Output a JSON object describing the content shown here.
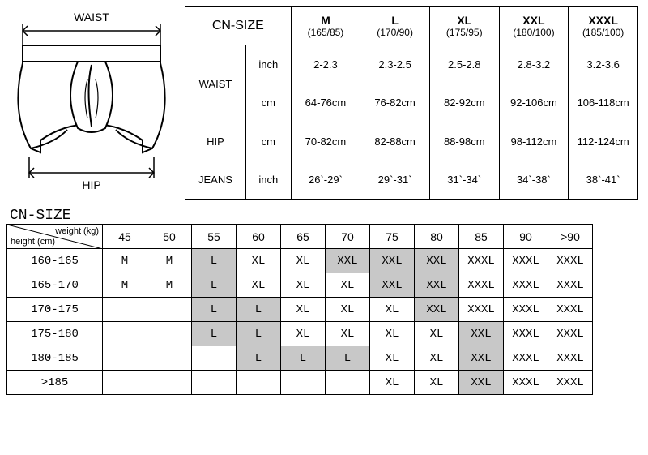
{
  "diagram": {
    "waist_label": "WAIST",
    "hip_label": "HIP",
    "colors": {
      "stroke": "#000000",
      "fill_light": "#ffffff",
      "fill_shadow": "#eeeeee"
    }
  },
  "size_table": {
    "title": "CN-SIZE",
    "columns": [
      {
        "label": "M",
        "sub": "(165/85)"
      },
      {
        "label": "L",
        "sub": "(170/90)"
      },
      {
        "label": "XL",
        "sub": "(175/95)"
      },
      {
        "label": "XXL",
        "sub": "(180/100)"
      },
      {
        "label": "XXXL",
        "sub": "(185/100)"
      }
    ],
    "rows": [
      {
        "group": "WAIST",
        "unit": "inch",
        "values": [
          "2-2.3",
          "2.3-2.5",
          "2.5-2.8",
          "2.8-3.2",
          "3.2-3.6"
        ]
      },
      {
        "group": "",
        "unit": "cm",
        "values": [
          "64-76cm",
          "76-82cm",
          "82-92cm",
          "92-106cm",
          "106-118cm"
        ]
      },
      {
        "group": "HIP",
        "unit": "cm",
        "values": [
          "70-82cm",
          "82-88cm",
          "88-98cm",
          "98-112cm",
          "112-124cm"
        ]
      },
      {
        "group": "JEANS",
        "unit": "inch",
        "values": [
          "26`-29`",
          "29`-31`",
          "31`-34`",
          "34`-38`",
          "38`-41`"
        ]
      }
    ],
    "row_groups": [
      {
        "label": "WAIST",
        "span": 2
      },
      {
        "label": "HIP",
        "span": 1
      },
      {
        "label": "JEANS",
        "span": 1
      }
    ]
  },
  "wh_table": {
    "title": "CN-SIZE",
    "axis": {
      "weight": "weight (kg)",
      "height": "height (cm)"
    },
    "weight_cols": [
      "45",
      "50",
      "55",
      "60",
      "65",
      "70",
      "75",
      "80",
      "85",
      "90",
      ">90"
    ],
    "height_rows": [
      "160-165",
      "165-170",
      "170-175",
      "175-180",
      "180-185",
      ">185"
    ],
    "cells": [
      [
        "M",
        "M",
        "L",
        "XL",
        "XL",
        "XXL",
        "XXL",
        "XXL",
        "XXXL",
        "XXXL",
        "XXXL"
      ],
      [
        "M",
        "M",
        "L",
        "XL",
        "XL",
        "XL",
        "XXL",
        "XXL",
        "XXXL",
        "XXXL",
        "XXXL"
      ],
      [
        "",
        "",
        "L",
        "L",
        "XL",
        "XL",
        "XL",
        "XXL",
        "XXXL",
        "XXXL",
        "XXXL"
      ],
      [
        "",
        "",
        "L",
        "L",
        "XL",
        "XL",
        "XL",
        "XL",
        "XXL",
        "XXXL",
        "XXXL"
      ],
      [
        "",
        "",
        "",
        "L",
        "L",
        "L",
        "XL",
        "XL",
        "XXL",
        "XXXL",
        "XXXL"
      ],
      [
        "",
        "",
        "",
        "",
        "",
        "",
        "XL",
        "XL",
        "XXL",
        "XXXL",
        "XXXL"
      ]
    ],
    "shaded": [
      [
        0,
        0,
        1,
        0,
        0,
        1,
        1,
        1,
        0,
        0,
        0
      ],
      [
        0,
        0,
        1,
        0,
        0,
        0,
        1,
        1,
        0,
        0,
        0
      ],
      [
        0,
        0,
        1,
        1,
        0,
        0,
        0,
        1,
        0,
        0,
        0
      ],
      [
        0,
        0,
        1,
        1,
        0,
        0,
        0,
        0,
        1,
        0,
        0
      ],
      [
        0,
        0,
        0,
        1,
        1,
        1,
        0,
        0,
        1,
        0,
        0
      ],
      [
        0,
        0,
        0,
        0,
        0,
        0,
        0,
        0,
        1,
        0,
        0
      ]
    ],
    "shade_color": "#c8c8c8"
  }
}
